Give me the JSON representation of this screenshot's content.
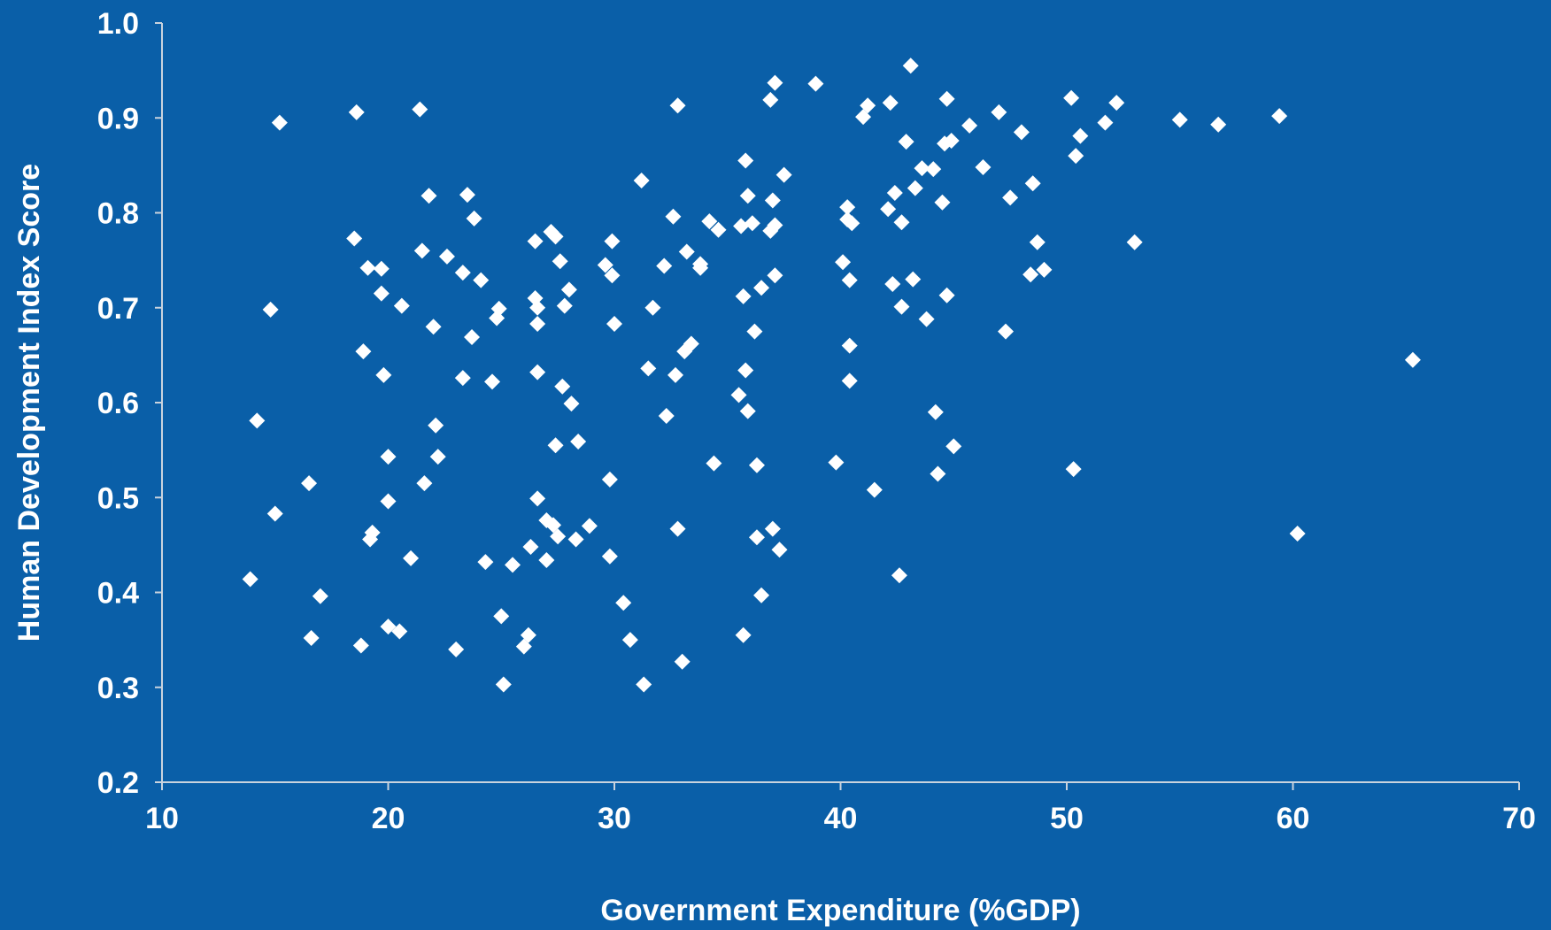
{
  "colors": {
    "background": "#0a5fa8",
    "axis": "#c9d3de",
    "marker": "#ffffff",
    "text": "#ffffff"
  },
  "chart_data": {
    "type": "scatter",
    "title": "",
    "xlabel": "Government Expenditure (%GDP)",
    "ylabel": "Human Development Index Score",
    "xlim": [
      10,
      70
    ],
    "ylim": [
      0.2,
      1.0
    ],
    "xticks": [
      "10",
      "20",
      "30",
      "40",
      "50",
      "60",
      "70"
    ],
    "yticks": [
      "0.2",
      "0.3",
      "0.4",
      "0.5",
      "0.6",
      "0.7",
      "0.8",
      "0.9",
      "1.0"
    ],
    "grid": false,
    "legend": "none",
    "marker": "diamond",
    "series": [
      {
        "points": [
          [
            13.9,
            0.414
          ],
          [
            14.2,
            0.581
          ],
          [
            14.8,
            0.698
          ],
          [
            15.0,
            0.483
          ],
          [
            15.2,
            0.895
          ],
          [
            16.5,
            0.515
          ],
          [
            16.6,
            0.352
          ],
          [
            17.0,
            0.396
          ],
          [
            18.5,
            0.773
          ],
          [
            18.6,
            0.906
          ],
          [
            18.8,
            0.344
          ],
          [
            18.9,
            0.654
          ],
          [
            19.1,
            0.742
          ],
          [
            19.2,
            0.456
          ],
          [
            19.3,
            0.463
          ],
          [
            19.7,
            0.741
          ],
          [
            19.7,
            0.715
          ],
          [
            19.8,
            0.629
          ],
          [
            20.0,
            0.543
          ],
          [
            20.0,
            0.496
          ],
          [
            20.0,
            0.364
          ],
          [
            20.5,
            0.359
          ],
          [
            20.6,
            0.702
          ],
          [
            21.0,
            0.436
          ],
          [
            21.4,
            0.909
          ],
          [
            21.5,
            0.76
          ],
          [
            21.6,
            0.515
          ],
          [
            21.8,
            0.818
          ],
          [
            22.0,
            0.68
          ],
          [
            22.1,
            0.576
          ],
          [
            22.2,
            0.543
          ],
          [
            22.6,
            0.754
          ],
          [
            23.0,
            0.34
          ],
          [
            23.3,
            0.737
          ],
          [
            23.3,
            0.626
          ],
          [
            23.5,
            0.819
          ],
          [
            23.7,
            0.669
          ],
          [
            23.8,
            0.794
          ],
          [
            24.1,
            0.729
          ],
          [
            24.3,
            0.432
          ],
          [
            24.6,
            0.622
          ],
          [
            24.8,
            0.689
          ],
          [
            24.9,
            0.699
          ],
          [
            25.0,
            0.375
          ],
          [
            25.1,
            0.303
          ],
          [
            25.5,
            0.429
          ],
          [
            26.0,
            0.343
          ],
          [
            26.2,
            0.355
          ],
          [
            26.3,
            0.448
          ],
          [
            26.5,
            0.71
          ],
          [
            26.5,
            0.77
          ],
          [
            26.6,
            0.7
          ],
          [
            26.6,
            0.683
          ],
          [
            26.6,
            0.632
          ],
          [
            26.6,
            0.499
          ],
          [
            27.0,
            0.476
          ],
          [
            27.0,
            0.434
          ],
          [
            27.2,
            0.78
          ],
          [
            27.3,
            0.471
          ],
          [
            27.4,
            0.555
          ],
          [
            27.4,
            0.775
          ],
          [
            27.5,
            0.459
          ],
          [
            27.6,
            0.749
          ],
          [
            27.7,
            0.617
          ],
          [
            27.8,
            0.702
          ],
          [
            28.0,
            0.719
          ],
          [
            28.1,
            0.599
          ],
          [
            28.3,
            0.456
          ],
          [
            28.4,
            0.559
          ],
          [
            28.9,
            0.47
          ],
          [
            29.6,
            0.745
          ],
          [
            29.8,
            0.519
          ],
          [
            29.8,
            0.438
          ],
          [
            29.9,
            0.734
          ],
          [
            29.9,
            0.77
          ],
          [
            30.0,
            0.683
          ],
          [
            30.4,
            0.389
          ],
          [
            30.7,
            0.35
          ],
          [
            31.2,
            0.834
          ],
          [
            31.3,
            0.303
          ],
          [
            31.5,
            0.636
          ],
          [
            31.7,
            0.7
          ],
          [
            32.2,
            0.744
          ],
          [
            32.3,
            0.586
          ],
          [
            32.6,
            0.796
          ],
          [
            32.7,
            0.629
          ],
          [
            32.8,
            0.913
          ],
          [
            32.8,
            0.467
          ],
          [
            33.0,
            0.327
          ],
          [
            33.1,
            0.654
          ],
          [
            33.2,
            0.759
          ],
          [
            33.4,
            0.662
          ],
          [
            33.8,
            0.742
          ],
          [
            33.8,
            0.746
          ],
          [
            34.2,
            0.791
          ],
          [
            34.4,
            0.536
          ],
          [
            34.6,
            0.782
          ],
          [
            35.5,
            0.608
          ],
          [
            35.6,
            0.786
          ],
          [
            35.7,
            0.712
          ],
          [
            35.7,
            0.355
          ],
          [
            35.8,
            0.855
          ],
          [
            35.8,
            0.634
          ],
          [
            35.9,
            0.591
          ],
          [
            35.9,
            0.818
          ],
          [
            36.1,
            0.789
          ],
          [
            36.2,
            0.675
          ],
          [
            36.3,
            0.534
          ],
          [
            36.3,
            0.458
          ],
          [
            36.5,
            0.721
          ],
          [
            36.5,
            0.397
          ],
          [
            36.9,
            0.919
          ],
          [
            36.9,
            0.781
          ],
          [
            37.0,
            0.813
          ],
          [
            37.0,
            0.467
          ],
          [
            37.1,
            0.787
          ],
          [
            37.1,
            0.734
          ],
          [
            37.1,
            0.937
          ],
          [
            37.3,
            0.445
          ],
          [
            37.5,
            0.84
          ],
          [
            38.9,
            0.936
          ],
          [
            39.8,
            0.537
          ],
          [
            40.1,
            0.748
          ],
          [
            40.3,
            0.806
          ],
          [
            40.3,
            0.793
          ],
          [
            40.4,
            0.66
          ],
          [
            40.4,
            0.623
          ],
          [
            40.4,
            0.729
          ],
          [
            40.5,
            0.789
          ],
          [
            41.0,
            0.901
          ],
          [
            41.2,
            0.913
          ],
          [
            41.5,
            0.508
          ],
          [
            42.1,
            0.804
          ],
          [
            42.2,
            0.916
          ],
          [
            42.3,
            0.725
          ],
          [
            42.4,
            0.821
          ],
          [
            42.6,
            0.418
          ],
          [
            42.7,
            0.701
          ],
          [
            42.7,
            0.79
          ],
          [
            42.9,
            0.875
          ],
          [
            43.1,
            0.955
          ],
          [
            43.2,
            0.73
          ],
          [
            43.3,
            0.826
          ],
          [
            43.6,
            0.847
          ],
          [
            43.8,
            0.688
          ],
          [
            44.1,
            0.846
          ],
          [
            44.2,
            0.59
          ],
          [
            44.3,
            0.525
          ],
          [
            44.5,
            0.811
          ],
          [
            44.6,
            0.873
          ],
          [
            44.7,
            0.92
          ],
          [
            44.7,
            0.713
          ],
          [
            44.9,
            0.876
          ],
          [
            45.0,
            0.554
          ],
          [
            45.7,
            0.892
          ],
          [
            46.3,
            0.848
          ],
          [
            47.0,
            0.906
          ],
          [
            47.3,
            0.675
          ],
          [
            47.5,
            0.816
          ],
          [
            48.0,
            0.885
          ],
          [
            48.4,
            0.735
          ],
          [
            48.5,
            0.831
          ],
          [
            48.7,
            0.769
          ],
          [
            49.0,
            0.74
          ],
          [
            50.2,
            0.921
          ],
          [
            50.3,
            0.53
          ],
          [
            50.4,
            0.86
          ],
          [
            50.6,
            0.881
          ],
          [
            51.7,
            0.895
          ],
          [
            52.2,
            0.916
          ],
          [
            53.0,
            0.769
          ],
          [
            55.0,
            0.898
          ],
          [
            56.7,
            0.893
          ],
          [
            59.4,
            0.902
          ],
          [
            60.2,
            0.462
          ],
          [
            65.3,
            0.645
          ]
        ]
      }
    ]
  }
}
